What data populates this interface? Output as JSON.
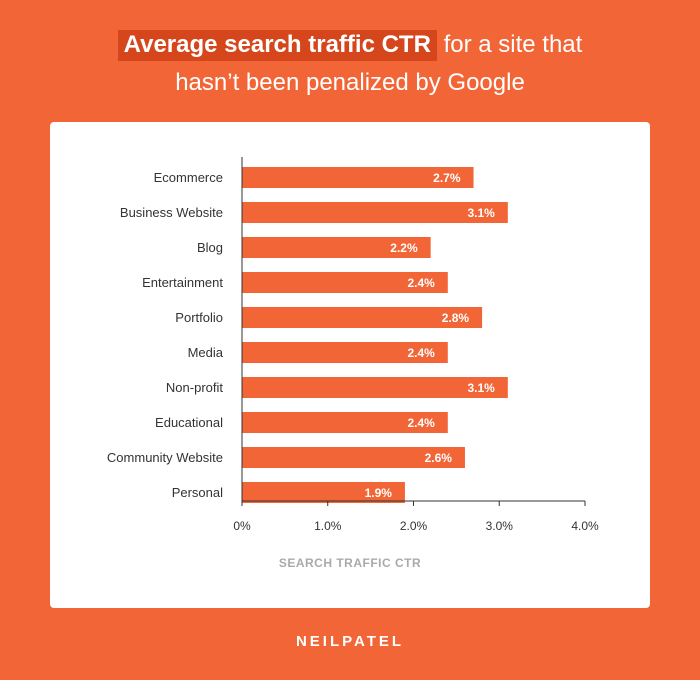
{
  "title": {
    "highlight": "Average search traffic CTR",
    "rest_line1": " for a site that",
    "line2": "hasn’t been penalized by Google"
  },
  "brand": "NEILPATEL",
  "colors": {
    "background": "#f26536",
    "bar": "#f26536",
    "highlight_bg": "#d6461c",
    "label_text": "#333333",
    "xlabel_text": "#aaaaaa"
  },
  "chart_data": {
    "type": "bar",
    "orientation": "horizontal",
    "categories": [
      "Ecommerce",
      "Business Website",
      "Blog",
      "Entertainment",
      "Portfolio",
      "Media",
      "Non-profit",
      "Educational",
      "Community Website",
      "Personal"
    ],
    "values": [
      2.7,
      3.1,
      2.2,
      2.4,
      2.8,
      2.4,
      3.1,
      2.4,
      2.6,
      1.9
    ],
    "data_labels": [
      "2.7%",
      "3.1%",
      "2.2%",
      "2.4%",
      "2.8%",
      "2.4%",
      "3.1%",
      "2.4%",
      "2.6%",
      "1.9%"
    ],
    "xlim": [
      0,
      4.0
    ],
    "xticks": [
      0,
      1.0,
      2.0,
      3.0,
      4.0
    ],
    "xtick_labels": [
      "0%",
      "1.0%",
      "2.0%",
      "3.0%",
      "4.0%"
    ],
    "xlabel": "SEARCH TRAFFIC CTR",
    "ylabel": "",
    "grid": false,
    "legend": "none"
  }
}
